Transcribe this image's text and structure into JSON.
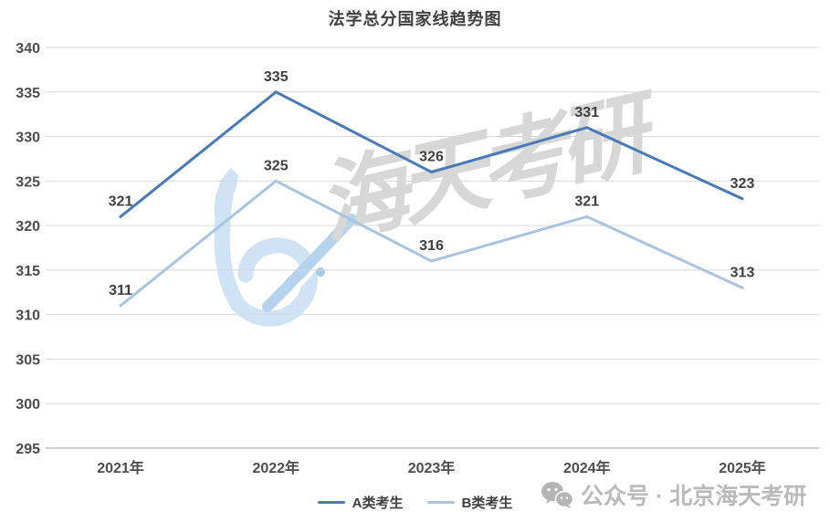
{
  "title": "法学总分国家线趋势图",
  "chart_data": {
    "type": "line",
    "categories": [
      "2021年",
      "2022年",
      "2023年",
      "2024年",
      "2025年"
    ],
    "series": [
      {
        "name": "A类考生",
        "values": [
          321,
          335,
          326,
          331,
          323
        ],
        "color": "#4a7ab5"
      },
      {
        "name": "B类考生",
        "values": [
          311,
          325,
          316,
          321,
          313
        ],
        "color": "#a9c4e0"
      }
    ],
    "yticks": [
      340,
      335,
      330,
      325,
      320,
      315,
      310,
      305,
      300,
      295
    ],
    "ylim": [
      295,
      340
    ],
    "grid": true,
    "data_labels": true,
    "legend_position": "bottom"
  },
  "watermarks": {
    "calligraphy_text": "海天考研",
    "footer_text": "公众号 · 北京海天考研",
    "logo_icon": "haitian-brush-logo",
    "wechat_icon": "wechat-icon"
  },
  "colors": {
    "series_a": "#4a7ab5",
    "series_b": "#a9c4e0",
    "grid": "#d9d9d9",
    "axis_line": "#bfbfbf",
    "tick_label": "#4d4d4d",
    "data_label": "#404040",
    "title": "#404040",
    "watermark_gray": "#d7d7d7",
    "watermark_blue": "#cbe1f4",
    "footer_gray": "#bababa"
  }
}
